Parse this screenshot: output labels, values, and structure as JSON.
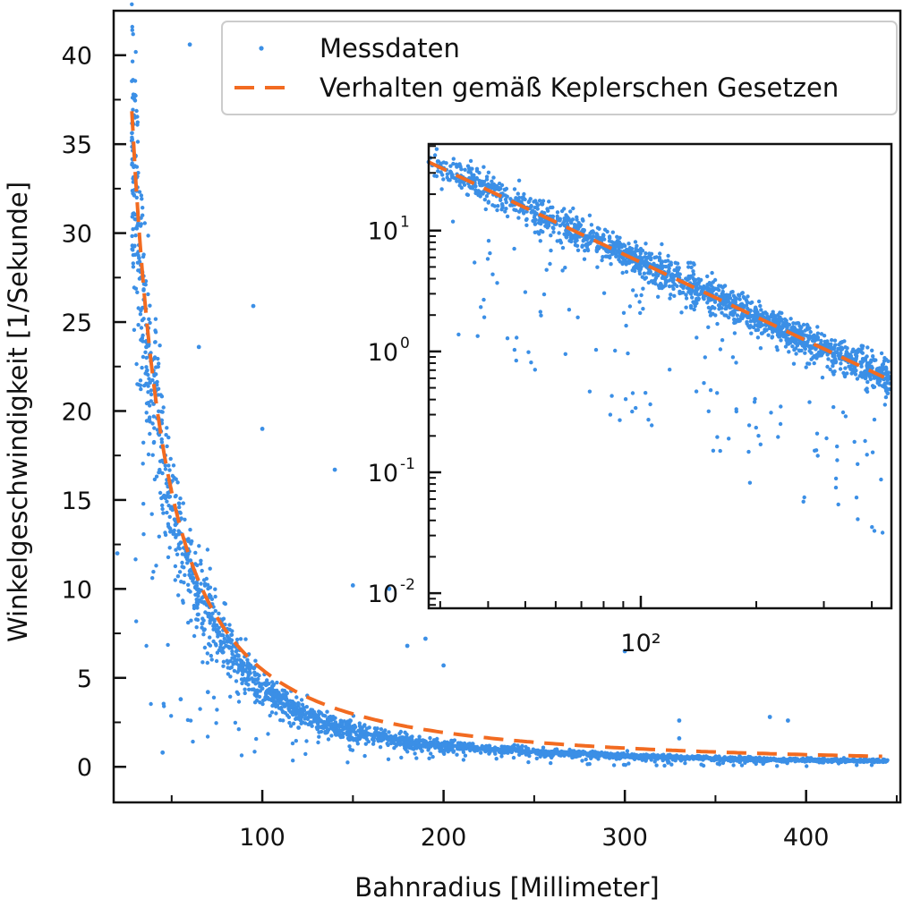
{
  "chart_data": [
    {
      "type": "scatter",
      "title": "",
      "xlabel": "Bahnradius [Millimeter]",
      "ylabel": "Winkelgeschwindigkeit [1/Sekunde]",
      "xlim": [
        18,
        452
      ],
      "ylim": [
        -2,
        42.5
      ],
      "xticks": [
        100,
        200,
        300,
        400
      ],
      "xtick_labels": [
        "100",
        "200",
        "300",
        "400"
      ],
      "yticks": [
        0,
        5,
        10,
        15,
        20,
        25,
        30,
        35,
        40
      ],
      "ytick_labels": [
        "0",
        "5",
        "10",
        "15",
        "20",
        "25",
        "30",
        "35",
        "40"
      ],
      "grid": false,
      "legend_position": "top-right",
      "colors": {
        "points": "#3b8fe6",
        "model": "#f26b21",
        "frame": "#111111"
      },
      "series": [
        {
          "name": "Messdaten",
          "kind": "points",
          "description_of_cloud": "dense band around model curve from r≈28 to r≈445",
          "x": [
            28,
            30,
            31,
            32,
            34,
            36,
            38,
            40,
            42,
            45,
            48,
            50,
            52,
            55,
            58,
            60,
            62,
            65,
            68,
            70,
            72,
            75,
            78,
            80,
            85,
            90,
            95,
            100,
            110,
            120,
            130,
            140,
            150,
            160,
            170,
            180,
            190,
            200,
            220,
            240,
            260,
            280,
            300,
            320,
            340,
            360,
            380,
            400,
            420,
            440
          ],
          "y": [
            35.2,
            33.0,
            30.8,
            28.6,
            25.8,
            23.6,
            21.6,
            20.4,
            19.6,
            17.2,
            15.4,
            14.6,
            13.6,
            12.6,
            11.8,
            11.0,
            10.6,
            9.8,
            9.2,
            8.6,
            8.4,
            7.6,
            7.0,
            6.8,
            6.0,
            5.4,
            4.8,
            4.4,
            3.6,
            3.0,
            2.6,
            2.3,
            2.0,
            1.8,
            1.6,
            1.4,
            1.3,
            1.2,
            1.0,
            0.9,
            0.8,
            0.7,
            0.6,
            0.55,
            0.5,
            0.45,
            0.4,
            0.38,
            0.35,
            0.32
          ]
        },
        {
          "name": "Verhalten gemäß Keplerschen Gesetzen",
          "kind": "model",
          "model": "omega = 5460 * r^-1.5",
          "x": [
            28,
            32,
            36,
            40,
            45,
            50,
            60,
            70,
            80,
            90,
            100,
            120,
            140,
            160,
            180,
            200,
            220,
            240,
            260,
            280,
            300,
            320,
            340,
            360,
            380,
            400,
            420,
            440
          ],
          "y": [
            36.9,
            30.2,
            25.3,
            21.6,
            18.1,
            15.4,
            11.8,
            9.3,
            7.6,
            6.4,
            5.5,
            4.2,
            3.3,
            2.7,
            2.3,
            1.9,
            1.7,
            1.5,
            1.3,
            1.2,
            1.1,
            0.95,
            0.87,
            0.8,
            0.74,
            0.68,
            0.63,
            0.59
          ]
        }
      ],
      "outliers": {
        "x": [
          60,
          95,
          65,
          100,
          140,
          150,
          170,
          330,
          330,
          300,
          180,
          190,
          200,
          380,
          390,
          20,
          45,
          55,
          70,
          120
        ],
        "y": [
          40.6,
          25.9,
          23.6,
          19.0,
          16.7,
          10.2,
          10.0,
          2.6,
          1.6,
          6.5,
          6.8,
          7.2,
          5.7,
          2.8,
          2.6,
          12.0,
          0.8,
          3.8,
          4.2,
          2.2
        ]
      }
    },
    {
      "type": "scatter",
      "title": "",
      "inset": true,
      "xscale": "log",
      "yscale": "log",
      "xlim": [
        28,
        450
      ],
      "ylim": [
        0.0075,
        52
      ],
      "xtick_labels": [
        "10²"
      ],
      "ytick_labels": [
        "10",
        "1",
        "10",
        "-1",
        "10",
        "-2",
        "10",
        "0"
      ],
      "ytick_base": "10",
      "ytick_exponents": [
        "1",
        "0",
        "-1",
        "-2"
      ],
      "ytick_values": [
        10,
        1,
        0.1,
        0.01
      ],
      "xtick_values": [
        100
      ],
      "grid": false,
      "series": [
        {
          "name": "Messdaten",
          "kind": "points",
          "x": [
            28,
            32,
            36,
            40,
            50,
            60,
            70,
            80,
            100,
            120,
            150,
            200,
            250,
            300,
            350,
            400,
            440
          ],
          "y": [
            36.9,
            30.2,
            25.3,
            21.6,
            15.4,
            11.8,
            9.3,
            7.6,
            5.5,
            4.2,
            3.0,
            1.9,
            1.4,
            1.1,
            0.87,
            0.68,
            0.45
          ]
        },
        {
          "name": "Verhalten gemäß Keplerschen Gesetzen",
          "kind": "model",
          "x": [
            28,
            440
          ],
          "y": [
            36.9,
            0.59
          ]
        }
      ]
    }
  ]
}
